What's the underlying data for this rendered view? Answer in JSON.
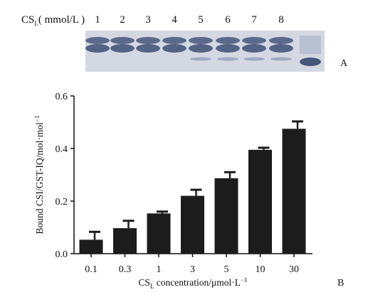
{
  "gel": {
    "title": "CS",
    "title_sub": "L",
    "title_units": "( mmol/L )",
    "lanes": [
      "1",
      "2",
      "3",
      "4",
      "5",
      "6",
      "7",
      "8"
    ],
    "panel_letter": "A",
    "colors": {
      "band_dark": "#45577a",
      "band_light": "#9aa5bf",
      "background": "#d4d8e2",
      "marker": "#5b6b8e"
    }
  },
  "chart_data": {
    "type": "bar",
    "categories": [
      "0.1",
      "0.3",
      "1",
      "3",
      "5",
      "10",
      "30"
    ],
    "values": [
      0.053,
      0.097,
      0.153,
      0.22,
      0.287,
      0.395,
      0.475
    ],
    "errors": [
      0.03,
      0.028,
      0.007,
      0.023,
      0.023,
      0.008,
      0.028
    ],
    "ylim": [
      0,
      0.6
    ],
    "yticks": [
      "0.0",
      "0.2",
      "0.4",
      "0.6"
    ],
    "ylabel": "Bound CSI/GST-IQ/mol·mol",
    "ylabel_sup": "−1",
    "xlabel_prefix": "CS",
    "xlabel_sub": "L",
    "xlabel_rest": " concentration/μmol·L",
    "xlabel_sup": "−1",
    "panel_letter": "B",
    "grid": false,
    "bar_color": "#1c1c1c"
  }
}
